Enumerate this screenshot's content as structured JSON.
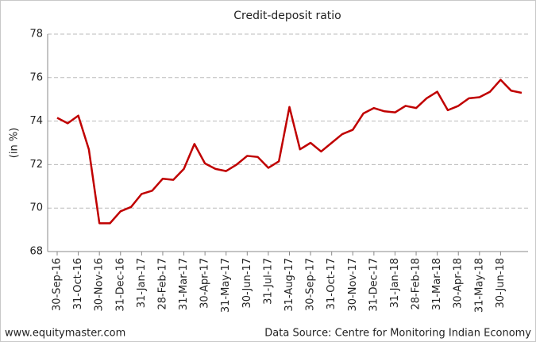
{
  "chart_data": {
    "type": "line",
    "title": "Credit-deposit ratio",
    "y_label": "(in %)",
    "categories": [
      "30-Sep-16",
      null,
      "31-Oct-16",
      null,
      "30-Nov-16",
      null,
      "31-Dec-16",
      null,
      "31-Jan-17",
      null,
      "28-Feb-17",
      null,
      "31-Mar-17",
      null,
      "30-Apr-17",
      null,
      "31-May-17",
      null,
      "30-Jun-17",
      null,
      "31-Jul-17",
      null,
      "31-Aug-17",
      null,
      "30-Sep-17",
      null,
      "31-Oct-17",
      null,
      "30-Nov-17",
      null,
      "31-Dec-17",
      null,
      "31-Jan-18",
      null,
      "28-Feb-18",
      null,
      "31-Mar-18",
      null,
      "30-Apr-18",
      null,
      "31-May-18",
      null,
      "30-Jun-18",
      null,
      null
    ],
    "values": [
      74.15,
      73.9,
      74.25,
      72.7,
      69.3,
      69.3,
      69.85,
      70.05,
      70.65,
      70.8,
      71.35,
      71.3,
      71.8,
      72.95,
      72.05,
      71.8,
      71.7,
      72.0,
      72.4,
      72.35,
      71.85,
      72.15,
      74.65,
      72.7,
      73.0,
      72.6,
      73.0,
      73.4,
      73.6,
      74.35,
      74.6,
      74.45,
      74.4,
      74.7,
      74.6,
      75.05,
      75.35,
      74.5,
      74.7,
      75.05,
      75.1,
      75.35,
      75.9,
      75.4,
      75.3
    ],
    "color": "#c00000",
    "ylim": [
      68,
      78
    ],
    "yticks": [
      68,
      70,
      72,
      74,
      76,
      78
    ],
    "grid": true
  },
  "footer": {
    "left": "www.equitymaster.com",
    "right": "Data Source: Centre for Monitoring Indian Economy"
  }
}
